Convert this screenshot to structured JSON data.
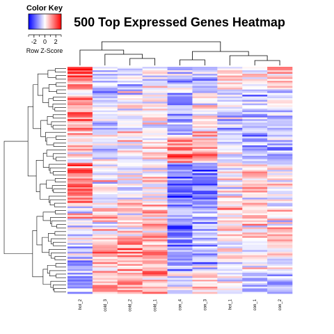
{
  "chart_data": {
    "type": "heatmap",
    "title": "500 Top Expressed Genes Heatmap",
    "columns": [
      "hot_2",
      "cold_3",
      "cold_2",
      "cold_1",
      "con_4",
      "con_3",
      "hot_1",
      "con_1",
      "con_2"
    ],
    "row_count": 500,
    "color_key": {
      "title": "Color Key",
      "label": "Row Z-Score",
      "ticks": [
        -2,
        0,
        2
      ],
      "tick_labels": [
        "-2",
        "0",
        "2"
      ],
      "range": [
        -3,
        3
      ],
      "low_color": "#0000ff",
      "mid_color": "#ffffff",
      "high_color": "#ff0000"
    },
    "column_dendrogram": true,
    "row_dendrogram": true
  }
}
